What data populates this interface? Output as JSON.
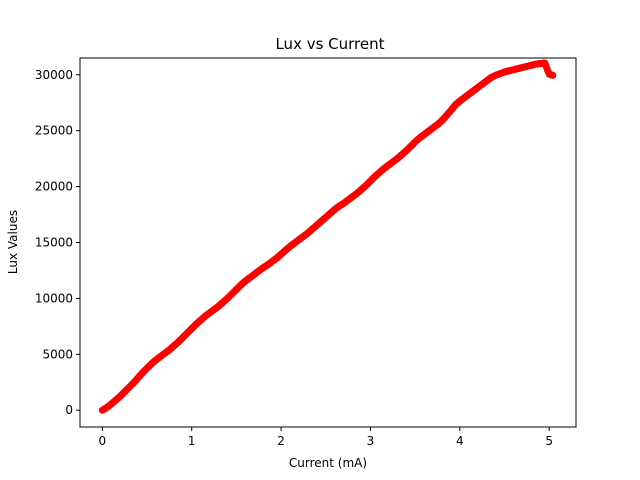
{
  "chart_data": {
    "type": "scatter",
    "title": "Lux vs Current",
    "xlabel": "Current (mA)",
    "ylabel": "Lux Values",
    "xlim": [
      -0.25,
      5.3
    ],
    "ylim": [
      -1500,
      31500
    ],
    "xticks": [
      0,
      1,
      2,
      3,
      4,
      5
    ],
    "yticks": [
      0,
      5000,
      10000,
      15000,
      20000,
      25000,
      30000
    ],
    "grid": false,
    "series": [
      {
        "color": "#ff0000",
        "x": [
          0.0,
          0.05,
          0.1,
          0.15,
          0.2,
          0.25,
          0.3,
          0.35,
          0.4,
          0.45,
          0.5,
          0.55,
          0.6,
          0.65,
          0.7,
          0.75,
          0.8,
          0.85,
          0.9,
          0.95,
          1.0,
          1.05,
          1.1,
          1.15,
          1.2,
          1.25,
          1.3,
          1.35,
          1.4,
          1.45,
          1.5,
          1.55,
          1.6,
          1.65,
          1.7,
          1.75,
          1.8,
          1.85,
          1.9,
          1.95,
          2.0,
          2.05,
          2.1,
          2.15,
          2.2,
          2.25,
          2.3,
          2.35,
          2.4,
          2.45,
          2.5,
          2.55,
          2.6,
          2.65,
          2.7,
          2.75,
          2.8,
          2.85,
          2.9,
          2.95,
          3.0,
          3.05,
          3.1,
          3.15,
          3.2,
          3.25,
          3.3,
          3.35,
          3.4,
          3.45,
          3.5,
          3.55,
          3.6,
          3.65,
          3.7,
          3.75,
          3.8,
          3.85,
          3.9,
          3.95,
          4.0,
          4.05,
          4.1,
          4.15,
          4.2,
          4.25,
          4.3,
          4.35,
          4.4,
          4.45,
          4.5,
          4.55,
          4.6,
          4.65,
          4.7,
          4.75,
          4.8,
          4.85,
          4.9,
          4.95,
          5.0,
          5.04
        ],
        "y": [
          0,
          250,
          550,
          900,
          1250,
          1650,
          2050,
          2450,
          2900,
          3350,
          3750,
          4150,
          4500,
          4800,
          5100,
          5400,
          5750,
          6100,
          6500,
          6900,
          7300,
          7700,
          8050,
          8400,
          8700,
          9000,
          9300,
          9650,
          10000,
          10400,
          10800,
          11200,
          11550,
          11850,
          12150,
          12450,
          12750,
          13000,
          13300,
          13600,
          13950,
          14300,
          14650,
          14950,
          15250,
          15550,
          15850,
          16200,
          16550,
          16900,
          17250,
          17600,
          17950,
          18250,
          18500,
          18800,
          19100,
          19400,
          19750,
          20100,
          20500,
          20900,
          21250,
          21600,
          21900,
          22200,
          22500,
          22850,
          23200,
          23600,
          24000,
          24350,
          24650,
          24950,
          25250,
          25550,
          25900,
          26350,
          26800,
          27300,
          27650,
          27950,
          28250,
          28550,
          28850,
          29150,
          29450,
          29750,
          29950,
          30100,
          30250,
          30350,
          30450,
          30550,
          30650,
          30750,
          30850,
          30950,
          31000,
          31050,
          30050,
          29950
        ]
      }
    ]
  }
}
